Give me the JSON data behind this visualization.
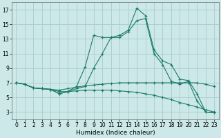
{
  "xlabel": "Humidex (Indice chaleur)",
  "background_color": "#cce8e8",
  "grid_color": "#aacccc",
  "line_color": "#1a7a6a",
  "xlim": [
    -0.5,
    23.5
  ],
  "ylim": [
    2,
    18
  ],
  "xticks": [
    0,
    1,
    2,
    3,
    4,
    5,
    6,
    7,
    8,
    9,
    10,
    11,
    12,
    13,
    14,
    15,
    16,
    17,
    18,
    19,
    20,
    21,
    22,
    23
  ],
  "yticks": [
    3,
    5,
    7,
    9,
    11,
    13,
    15,
    17
  ],
  "series": [
    {
      "x": [
        0,
        1,
        2,
        3,
        4,
        5,
        6,
        7,
        8,
        9,
        10,
        11,
        12,
        13,
        14,
        15,
        16,
        17,
        18,
        19,
        20,
        21,
        22,
        23
      ],
      "y": [
        7.0,
        6.8,
        6.3,
        6.2,
        6.1,
        5.5,
        5.8,
        6.5,
        9.2,
        13.5,
        13.2,
        13.2,
        13.5,
        14.2,
        17.2,
        16.2,
        11.5,
        10.0,
        9.5,
        7.5,
        7.3,
        5.5,
        3.0,
        2.9
      ]
    },
    {
      "x": [
        0,
        1,
        2,
        3,
        4,
        5,
        6,
        7,
        8,
        9,
        10,
        11,
        12,
        13,
        14,
        15,
        16,
        17,
        18,
        19,
        20,
        21,
        22,
        23
      ],
      "y": [
        7.0,
        6.8,
        6.3,
        6.2,
        6.1,
        5.5,
        5.8,
        6.2,
        6.5,
        9.0,
        11.0,
        13.2,
        13.2,
        14.0,
        15.5,
        15.8,
        11.0,
        9.5,
        7.2,
        6.8,
        7.2,
        4.5,
        3.0,
        2.9
      ]
    },
    {
      "x": [
        0,
        1,
        2,
        3,
        4,
        5,
        6,
        7,
        8,
        9,
        10,
        11,
        12,
        13,
        14,
        15,
        16,
        17,
        18,
        19,
        20,
        21,
        22,
        23
      ],
      "y": [
        7.0,
        6.8,
        6.3,
        6.2,
        6.1,
        6.0,
        6.2,
        6.4,
        6.6,
        6.7,
        6.8,
        6.9,
        7.0,
        7.0,
        7.0,
        7.0,
        7.0,
        7.0,
        7.0,
        7.0,
        7.0,
        7.0,
        6.8,
        6.5
      ]
    },
    {
      "x": [
        0,
        1,
        2,
        3,
        4,
        5,
        6,
        7,
        8,
        9,
        10,
        11,
        12,
        13,
        14,
        15,
        16,
        17,
        18,
        19,
        20,
        21,
        22,
        23
      ],
      "y": [
        7.0,
        6.8,
        6.3,
        6.2,
        6.1,
        5.8,
        5.8,
        5.9,
        6.0,
        6.0,
        6.0,
        6.0,
        5.9,
        5.8,
        5.7,
        5.5,
        5.3,
        5.0,
        4.7,
        4.3,
        4.0,
        3.7,
        3.3,
        3.0
      ]
    }
  ]
}
